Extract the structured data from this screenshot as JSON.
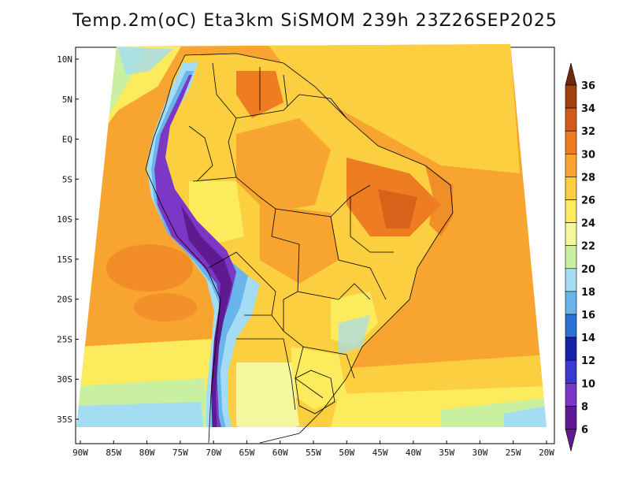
{
  "title": "Temp.2m(oC) Eta3km SiSMOM 239h 23Z26SEP2025",
  "map": {
    "lat_labels": [
      "10N",
      "5N",
      "EQ",
      "5S",
      "10S",
      "15S",
      "20S",
      "25S",
      "30S",
      "35S"
    ],
    "lon_labels": [
      "90W",
      "85W",
      "80W",
      "75W",
      "70W",
      "65W",
      "60W",
      "55W",
      "50W",
      "45W",
      "40W",
      "35W",
      "30W",
      "25W",
      "20W"
    ],
    "lat_values": [
      10,
      5,
      0,
      -5,
      -10,
      -15,
      -20,
      -25,
      -30,
      -35
    ],
    "lon_values": [
      -90,
      -85,
      -80,
      -75,
      -70,
      -65,
      -60,
      -55,
      -50,
      -45,
      -40,
      -35,
      -30,
      -25,
      -20
    ]
  },
  "colorbar": {
    "labels": [
      "36",
      "34",
      "32",
      "30",
      "28",
      "26",
      "24",
      "22",
      "20",
      "18",
      "16",
      "14",
      "12",
      "10",
      "8",
      "6"
    ],
    "colors": [
      "#6b2a0c",
      "#a2400f",
      "#d35a18",
      "#ee7d22",
      "#f7a431",
      "#fbcf3f",
      "#fbeb5d",
      "#f4f79c",
      "#c8f0a0",
      "#a4dcf3",
      "#6ab4ec",
      "#2c72d4",
      "#1722a8",
      "#3a3ad2",
      "#7b37c6",
      "#5e1a8e"
    ]
  }
}
